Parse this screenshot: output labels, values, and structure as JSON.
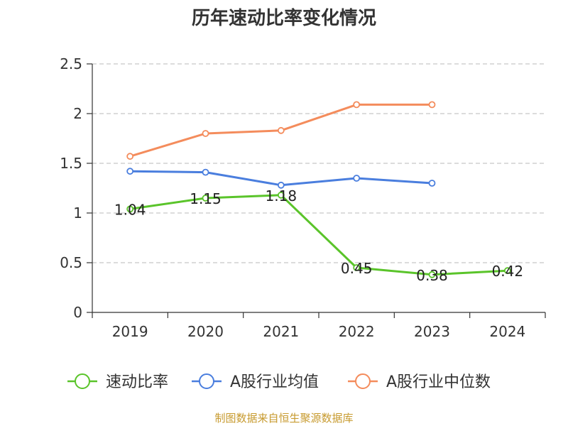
{
  "chart_data": {
    "type": "line",
    "title": "历年速动比率变化情况",
    "xlabel": "",
    "ylabel": "",
    "categories": [
      "2019",
      "2020",
      "2021",
      "2022",
      "2023",
      "2024"
    ],
    "ylim": [
      0,
      2.5
    ],
    "yticks": [
      "0",
      "0.5",
      "1",
      "1.5",
      "2",
      "2.5"
    ],
    "grid": true,
    "legend_position": "bottom",
    "series": [
      {
        "name": "速动比率",
        "color": "#5ac42a",
        "values": [
          1.04,
          1.15,
          1.18,
          0.45,
          0.38,
          0.42
        ],
        "labels": [
          "1.04",
          "1.15",
          "1.18",
          "0.45",
          "0.38",
          "0.42"
        ]
      },
      {
        "name": "A股行业均值",
        "color": "#4a7ede",
        "values": [
          1.42,
          1.41,
          1.28,
          1.35,
          1.3,
          null
        ]
      },
      {
        "name": "A股行业中位数",
        "color": "#f48c5c",
        "values": [
          1.57,
          1.8,
          1.83,
          2.09,
          2.09,
          null
        ]
      }
    ]
  },
  "source": "制图数据来自恒生聚源数据库",
  "colors": {
    "axis": "#333333",
    "grid": "#c8c8c8",
    "source_text": "#c79a2e",
    "title": "#333333"
  }
}
